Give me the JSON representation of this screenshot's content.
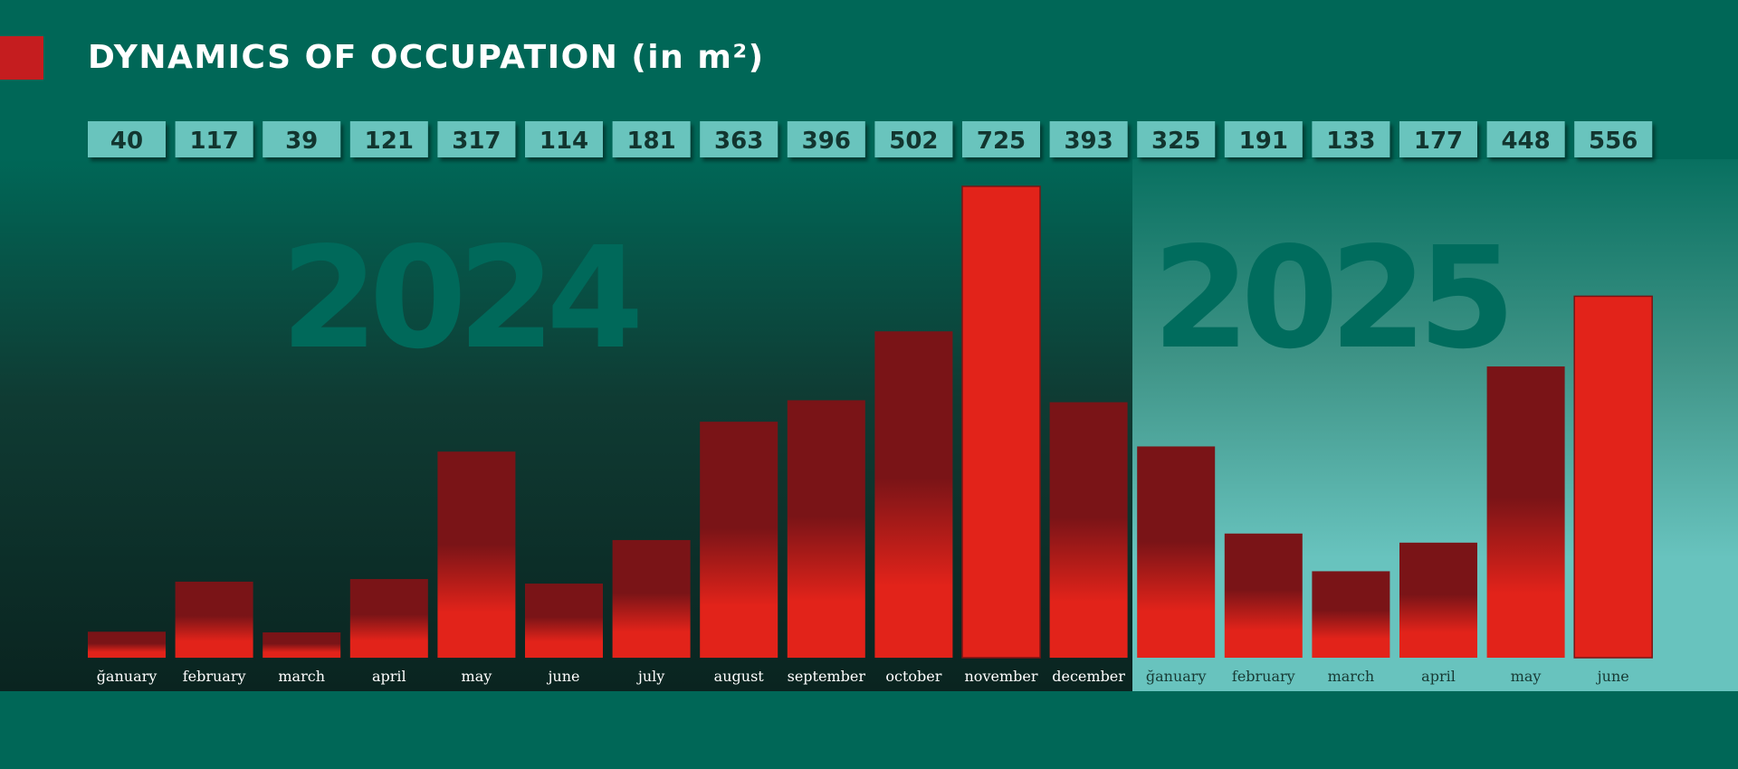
{
  "title": "DYNAMICS OF OCCUPATION (in m²)",
  "years": [
    "2024",
    "2025"
  ],
  "colors": {
    "background": "#006757",
    "accent": "#c51d1f",
    "bar_top": "#7a1417",
    "bar_bottom": "#e2231a",
    "bar_highlight": "#e2231a",
    "value_box": "#69c4bd",
    "value_text": "#12352f"
  },
  "chart_data": {
    "type": "bar",
    "title": "DYNAMICS OF OCCUPATION (in m²)",
    "xlabel": "",
    "ylabel": "",
    "unit": "m²",
    "categories": [
      "ğanuary",
      "february",
      "march",
      "april",
      "may",
      "june",
      "july",
      "august",
      "september",
      "october",
      "november",
      "december",
      "ğanuary",
      "february",
      "march",
      "april",
      "may",
      "june"
    ],
    "groups": [
      {
        "label": "2024",
        "count": 12
      },
      {
        "label": "2025",
        "count": 6
      }
    ],
    "values": [
      40,
      117,
      39,
      121,
      317,
      114,
      181,
      363,
      396,
      502,
      725,
      393,
      325,
      191,
      133,
      177,
      448,
      556
    ],
    "highlighted": [
      "november",
      "june"
    ],
    "ylim": [
      0,
      725
    ],
    "grid": false,
    "legend": "none"
  }
}
